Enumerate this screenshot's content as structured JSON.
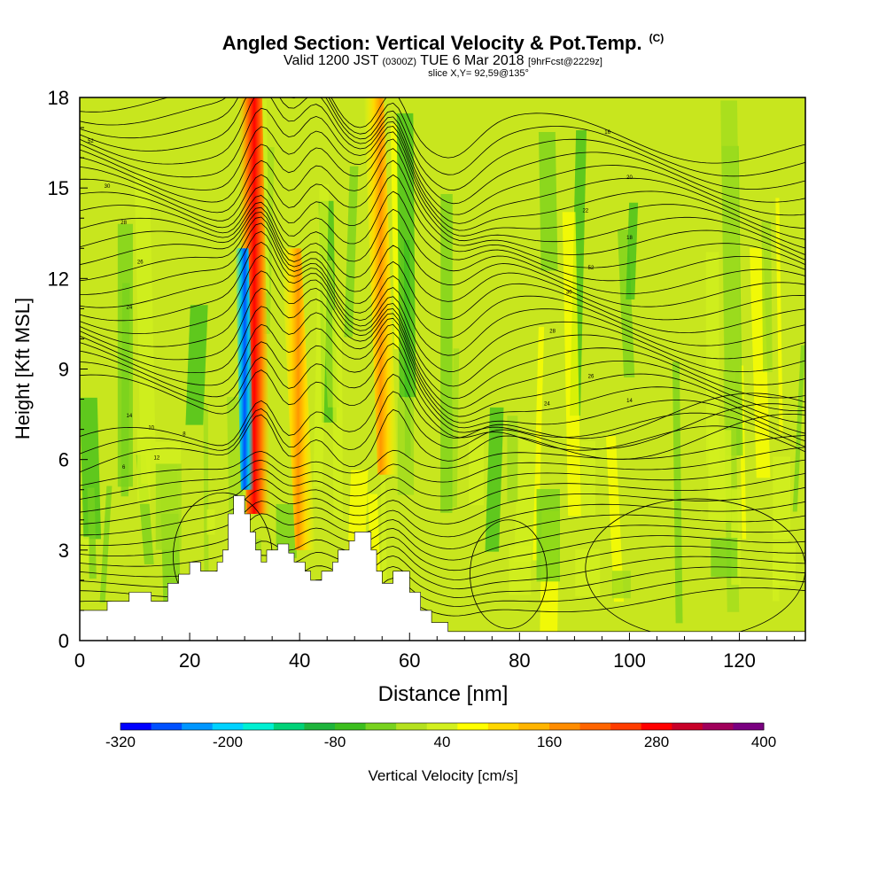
{
  "header": {
    "title": "Angled Section: Vertical Velocity & Pot.Temp.",
    "title_unit": "(C)",
    "subtitle_a": "Valid 1200 JST",
    "subtitle_b": "(0300Z)",
    "subtitle_c": "TUE 6 Mar 2018",
    "subtitle_d": "[9hrFcst@2229z]",
    "slice": "slice X,Y= 92,59@135°"
  },
  "chart_data": {
    "type": "heatmap",
    "xlabel": "Distance [nm]",
    "ylabel": "Height [Kft MSL]",
    "xlim": [
      0,
      132
    ],
    "ylim": [
      0,
      18
    ],
    "x_ticks": [
      0,
      20,
      40,
      60,
      80,
      100,
      120
    ],
    "y_ticks": [
      0,
      3,
      6,
      9,
      12,
      15,
      18
    ],
    "colorbar": {
      "label": "Vertical Velocity [cm/s]",
      "tick_labels": [
        "-320",
        "-200",
        "-80",
        "40",
        "160",
        "280",
        "400"
      ],
      "min": -320,
      "max": 400,
      "step": 40,
      "colors": [
        "#0000ff",
        "#0050ff",
        "#0096ff",
        "#00d2ff",
        "#00f0d2",
        "#00d278",
        "#1eb43c",
        "#3cbe1e",
        "#78d21e",
        "#b4e11e",
        "#d2f01e",
        "#ffff00",
        "#ffd700",
        "#ffb400",
        "#ff8c00",
        "#ff6400",
        "#ff3c00",
        "#ff0000",
        "#c80028",
        "#a0005a",
        "#7a0080"
      ]
    },
    "terrain_kft": [
      [
        0,
        1.0
      ],
      [
        5,
        1.0
      ],
      [
        5,
        1.3
      ],
      [
        9,
        1.3
      ],
      [
        9,
        1.6
      ],
      [
        13,
        1.6
      ],
      [
        13,
        1.3
      ],
      [
        16,
        1.3
      ],
      [
        16,
        1.9
      ],
      [
        18,
        1.9
      ],
      [
        18,
        2.2
      ],
      [
        20,
        2.2
      ],
      [
        20,
        2.6
      ],
      [
        22,
        2.6
      ],
      [
        22,
        2.3
      ],
      [
        25,
        2.3
      ],
      [
        25,
        2.6
      ],
      [
        26,
        2.6
      ],
      [
        26,
        3.0
      ],
      [
        27,
        3.0
      ],
      [
        27,
        4.2
      ],
      [
        28,
        4.2
      ],
      [
        28,
        4.8
      ],
      [
        30,
        4.8
      ],
      [
        30,
        4.2
      ],
      [
        31,
        4.2
      ],
      [
        31,
        3.6
      ],
      [
        32,
        3.6
      ],
      [
        32,
        3.0
      ],
      [
        33,
        3.0
      ],
      [
        33,
        2.6
      ],
      [
        34,
        2.6
      ],
      [
        34,
        3.0
      ],
      [
        36,
        3.0
      ],
      [
        36,
        3.2
      ],
      [
        38,
        3.2
      ],
      [
        38,
        2.9
      ],
      [
        39,
        2.9
      ],
      [
        39,
        2.6
      ],
      [
        41,
        2.6
      ],
      [
        41,
        2.3
      ],
      [
        42,
        2.3
      ],
      [
        42,
        2.0
      ],
      [
        44,
        2.0
      ],
      [
        44,
        2.3
      ],
      [
        46,
        2.3
      ],
      [
        46,
        2.6
      ],
      [
        47,
        2.6
      ],
      [
        47,
        3.0
      ],
      [
        49,
        3.0
      ],
      [
        49,
        3.3
      ],
      [
        50,
        3.3
      ],
      [
        50,
        3.6
      ],
      [
        53,
        3.6
      ],
      [
        53,
        3.0
      ],
      [
        54,
        3.0
      ],
      [
        54,
        2.3
      ],
      [
        55,
        2.3
      ],
      [
        55,
        1.9
      ],
      [
        57,
        1.9
      ],
      [
        57,
        2.3
      ],
      [
        60,
        2.3
      ],
      [
        60,
        1.6
      ],
      [
        62,
        1.6
      ],
      [
        62,
        1.0
      ],
      [
        64,
        1.0
      ],
      [
        64,
        0.6
      ],
      [
        67,
        0.6
      ],
      [
        67,
        0.3
      ],
      [
        70,
        0.3
      ],
      [
        70,
        0.3
      ],
      [
        132,
        0.3
      ]
    ],
    "updraft_cores": [
      {
        "x": 32.5,
        "top": 18,
        "bottom": 4.2,
        "max_cms": 320
      },
      {
        "x": 56,
        "top": 18,
        "bottom": 5.5,
        "max_cms": 160
      },
      {
        "x": 41,
        "top": 13,
        "bottom": 3.0,
        "max_cms": 120
      }
    ],
    "downdraft_cores": [
      {
        "x": 30.5,
        "top": 13,
        "bottom": 5.0,
        "min_cms": -280
      }
    ],
    "isentrope_labels": [
      "52",
      "30",
      "28",
      "26",
      "24",
      "14",
      "10",
      "8",
      "6",
      "12",
      "16",
      "20",
      "22",
      "18"
    ]
  },
  "colors": {
    "background": "#ffffff",
    "field_default": "#c8e61e",
    "field_green": "#78d21e",
    "contour": "#000000"
  }
}
